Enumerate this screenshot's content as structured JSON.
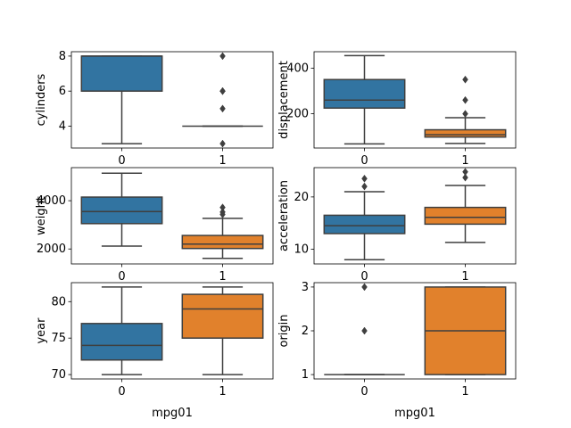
{
  "chart_data": [
    {
      "type": "box",
      "categories": [
        "0",
        "1"
      ],
      "xlabel": "",
      "ylabel": "cylinders",
      "ylim": [
        2.75,
        8.25
      ],
      "yticks": [
        4,
        6,
        8
      ],
      "boxes": [
        {
          "q1": 6,
          "median": 8,
          "q3": 8,
          "whisker_low": 3,
          "whisker_high": 8,
          "outliers": [],
          "color": "#3274a1"
        },
        {
          "q1": 4,
          "median": 4,
          "q3": 4,
          "whisker_low": 4,
          "whisker_high": 4,
          "outliers": [
            3,
            5,
            6,
            6,
            8
          ],
          "color": "#e1812c"
        }
      ]
    },
    {
      "type": "box",
      "categories": [
        "0",
        "1"
      ],
      "xlabel": "",
      "ylabel": "displacement",
      "ylim": [
        50,
        472
      ],
      "yticks": [
        200,
        400
      ],
      "boxes": [
        {
          "q1": 225,
          "median": 260,
          "q3": 350,
          "whisker_low": 68,
          "whisker_high": 455,
          "outliers": [],
          "color": "#3274a1"
        },
        {
          "q1": 98,
          "median": 108,
          "q3": 130,
          "whisker_low": 70,
          "whisker_high": 183,
          "outliers": [
            200,
            260,
            350
          ],
          "color": "#e1812c"
        }
      ]
    },
    {
      "type": "box",
      "categories": [
        "0",
        "1"
      ],
      "xlabel": "",
      "ylabel": "weight",
      "ylim": [
        1380,
        5370
      ],
      "yticks": [
        2000,
        4000
      ],
      "boxes": [
        {
          "q1": 3050,
          "median": 3550,
          "q3": 4150,
          "whisker_low": 2120,
          "whisker_high": 5140,
          "outliers": [],
          "color": "#3274a1"
        },
        {
          "q1": 2020,
          "median": 2200,
          "q3": 2560,
          "whisker_low": 1610,
          "whisker_high": 3270,
          "outliers": [
            3430,
            3530,
            3720
          ],
          "color": "#e1812c"
        }
      ]
    },
    {
      "type": "box",
      "categories": [
        "0",
        "1"
      ],
      "xlabel": "",
      "ylabel": "acceleration",
      "ylim": [
        7.2,
        25.6
      ],
      "yticks": [
        10,
        20
      ],
      "boxes": [
        {
          "q1": 13.0,
          "median": 14.5,
          "q3": 16.5,
          "whisker_low": 8.0,
          "whisker_high": 21.0,
          "outliers": [
            22.0,
            23.5
          ],
          "color": "#3274a1"
        },
        {
          "q1": 14.8,
          "median": 16.1,
          "q3": 18.0,
          "whisker_low": 11.3,
          "whisker_high": 22.2,
          "outliers": [
            23.7,
            24.8
          ],
          "color": "#e1812c"
        }
      ]
    },
    {
      "type": "box",
      "categories": [
        "0",
        "1"
      ],
      "xlabel": "mpg01",
      "ylabel": "year",
      "ylim": [
        69.4,
        82.6
      ],
      "yticks": [
        70,
        75,
        80
      ],
      "boxes": [
        {
          "q1": 72,
          "median": 74,
          "q3": 77,
          "whisker_low": 70,
          "whisker_high": 82,
          "outliers": [],
          "color": "#3274a1"
        },
        {
          "q1": 75,
          "median": 79,
          "q3": 81,
          "whisker_low": 70,
          "whisker_high": 82,
          "outliers": [],
          "color": "#e1812c"
        }
      ]
    },
    {
      "type": "box",
      "categories": [
        "0",
        "1"
      ],
      "xlabel": "mpg01",
      "ylabel": "origin",
      "ylim": [
        0.9,
        3.1
      ],
      "yticks": [
        1,
        2,
        3
      ],
      "boxes": [
        {
          "q1": 1,
          "median": 1,
          "q3": 1,
          "whisker_low": 1,
          "whisker_high": 1,
          "outliers": [
            2,
            3
          ],
          "color": "#3274a1"
        },
        {
          "q1": 1,
          "median": 2,
          "q3": 3,
          "whisker_low": 1,
          "whisker_high": 3,
          "outliers": [],
          "color": "#e1812c"
        }
      ]
    }
  ]
}
